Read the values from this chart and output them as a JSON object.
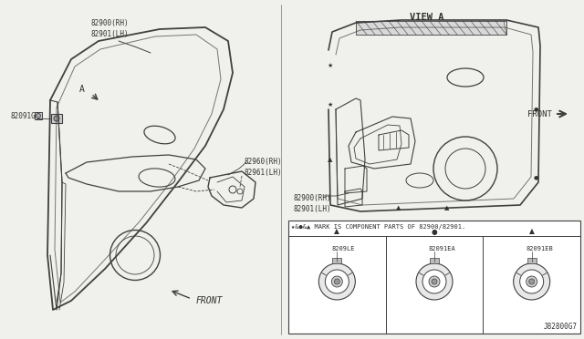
{
  "bg_color": "#f0f0ec",
  "line_color": "#404040",
  "text_color": "#303030",
  "view_a_label": "VIEW A",
  "front_label_left": "FRONT",
  "front_label_right": "FRONT",
  "label_82900_top": "82900(RH)\n82901(LH)",
  "label_82091G": "82091G",
  "label_82960": "82960(RH)\n82961(LH)",
  "label_82900_right": "82900(RH)\n82901(LH)",
  "component_note": "★&●&▲ MARK IS COMPONENT PARTS OF 82900/82901.",
  "table_parts": [
    {
      "symbol": "▲",
      "code": "8209LE"
    },
    {
      "symbol": "●",
      "code": "82091EA"
    },
    {
      "symbol": "▲",
      "code": "82091EB"
    }
  ],
  "diagram_id": "J82800G7",
  "a_label": "A"
}
